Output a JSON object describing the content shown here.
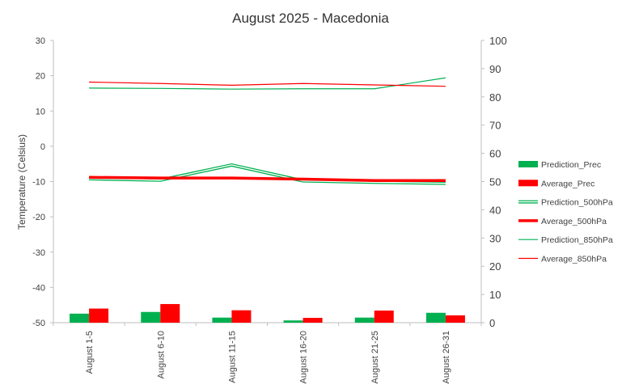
{
  "chart_data": {
    "type": "bar+line",
    "title": "August 2025 - Macedonia",
    "ylabel": "Temperature  (Celsius)",
    "y_left": {
      "min": -50,
      "max": 30,
      "ticks": [
        "30",
        "20",
        "10",
        "0",
        "-10",
        "-20",
        "-30",
        "-40",
        "-50"
      ]
    },
    "y_right": {
      "min": 0,
      "max": 100,
      "ticks": [
        "100",
        "90",
        "80",
        "70",
        "60",
        "50",
        "40",
        "30",
        "20",
        "10",
        "0"
      ]
    },
    "categories": [
      "August 1-5",
      "August 6-10",
      "August 11-15",
      "August 16-20",
      "August 21-25",
      "August 26-31"
    ],
    "bars": [
      {
        "name": "Prediction_Prec",
        "axis": "right",
        "color": "#00b050",
        "values": [
          3.2,
          3.8,
          1.8,
          0.8,
          1.8,
          3.5
        ]
      },
      {
        "name": "Average_Prec",
        "axis": "right",
        "color": "#ff0000",
        "values": [
          5.0,
          6.6,
          4.4,
          1.7,
          4.3,
          2.6
        ]
      }
    ],
    "lines": [
      {
        "name": "Prediction_500hPa",
        "axis": "left",
        "color": "#00b050",
        "style": "double",
        "values": [
          -9.2,
          -9.6,
          -5.3,
          -9.8,
          -10.2,
          -10.5
        ]
      },
      {
        "name": "Average_500hPa",
        "axis": "left",
        "color": "#ff0000",
        "style": "thick",
        "values": [
          -8.8,
          -9.0,
          -9.0,
          -9.3,
          -9.7,
          -9.7
        ]
      },
      {
        "name": "Prediction_850hPa",
        "axis": "left",
        "color": "#00b050",
        "style": "thin",
        "values": [
          16.5,
          16.4,
          16.2,
          16.3,
          16.3,
          19.4
        ]
      },
      {
        "name": "Average_850hPa",
        "axis": "left",
        "color": "#ff0000",
        "style": "thin",
        "values": [
          18.2,
          17.8,
          17.3,
          17.8,
          17.4,
          17.0
        ]
      }
    ],
    "legend_position": "right",
    "grid": false
  }
}
